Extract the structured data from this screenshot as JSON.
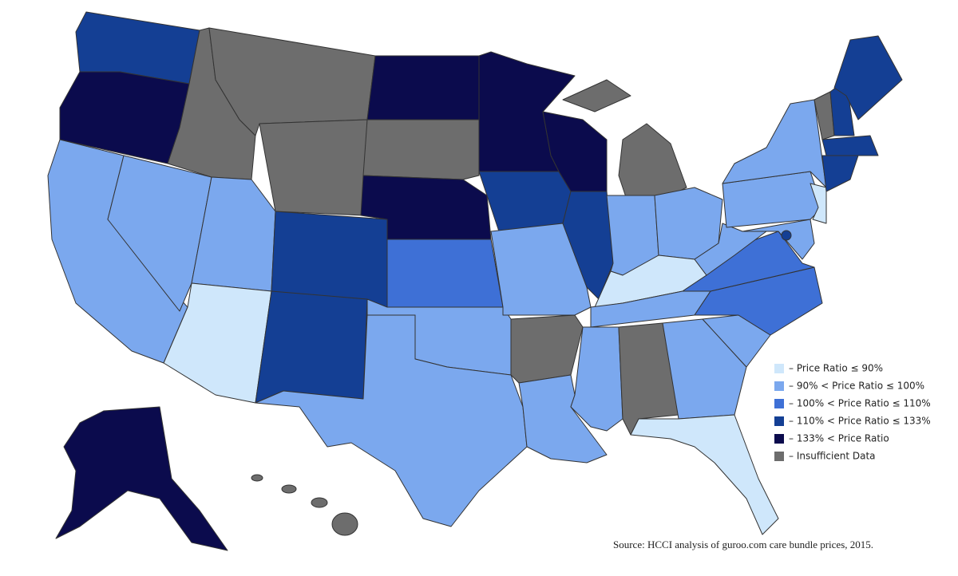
{
  "legend": {
    "items": [
      {
        "label": "– Price Ratio ≤ 90%",
        "color": "#cfe7fb"
      },
      {
        "label": "– 90% < Price Ratio ≤ 100%",
        "color": "#7ba8ee"
      },
      {
        "label": "– 100% < Price Ratio ≤ 110%",
        "color": "#3e70d6"
      },
      {
        "label": "– 110% < Price Ratio ≤ 133%",
        "color": "#143f94"
      },
      {
        "label": "– 133% < Price Ratio",
        "color": "#0b0b4d"
      },
      {
        "label": "– Insufficient Data",
        "color": "#6d6d6d"
      }
    ]
  },
  "source": "Source: HCCI analysis of guroo.com care bundle prices, 2015."
}
